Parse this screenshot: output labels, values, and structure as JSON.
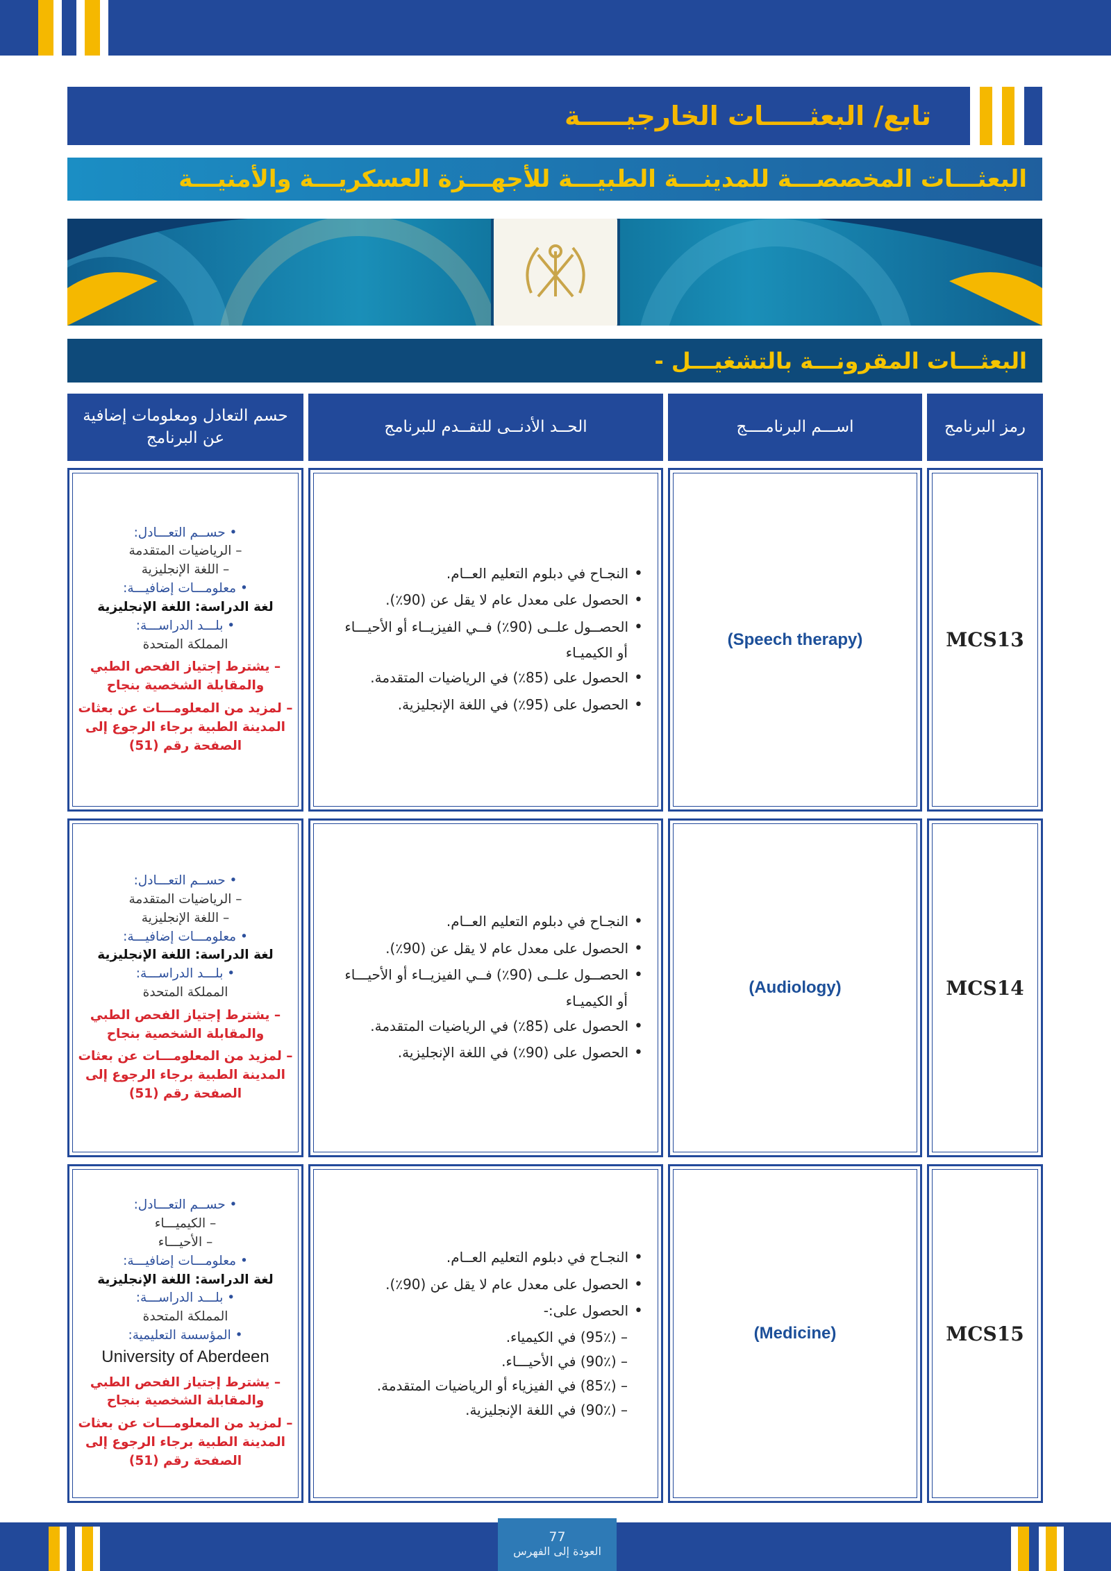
{
  "header": {
    "title": "تابع/ البعثـــــات الخارجيـــــة",
    "subtitle": "البعثـــات المخصصـــة للمدينـــة الطبيـــة للأجهـــزة العسكريـــة والأمنيـــة",
    "section": "- البعثـــات المقرونـــة بالتشغيـــل"
  },
  "colors": {
    "primary": "#22499a",
    "accent": "#f5b800",
    "dark": "#0e4a7a",
    "red": "#d7262e"
  },
  "banner": {
    "emblem": "emblem-icon"
  },
  "table": {
    "headers": [
      "رمز البرنامج",
      "اســـم البرنامــــج",
      "الحــد الأدنــى للتقــدم للبرنامج",
      "حسم التعادل ومعلومات إضافية عن البرنامج"
    ],
    "rows": [
      {
        "code": "MCS13",
        "name": "(Speech therapy)",
        "requirements": [
          {
            "t": "النجـاح في دبلوم التعليم العــام.",
            "b": true
          },
          {
            "t": "الحصول على معدل عام لا يقل عن (90٪).",
            "b": true
          },
          {
            "t": "الحصــول علــى (90٪) فــي الفيزيــاء أو الأحيـــاء",
            "b": true
          },
          {
            "t": "أو الكيميـاء",
            "b": false
          },
          {
            "t": "الحصول على (85٪) في الرياضيات المتقدمة.",
            "b": true
          },
          {
            "t": "الحصول على (95٪) في اللغة الإنجليزية.",
            "b": true
          }
        ],
        "info": {
          "tie_label": "حســم التعـــادل:",
          "tie": [
            "– الرياضيات المتقدمة",
            "– اللغة الإنجليزية"
          ],
          "extra_label": "معلومـــات إضافيـــة:",
          "language": "لغة الدراسة: اللغة الإنجليزية",
          "country_label": "بلـــد الدراســـة:",
          "country": "المملكة المتحدة",
          "institution_label": null,
          "institution": null,
          "note1": "– يشترط إجتياز الفحص الطبي والمقابلة الشخصية بنجاح",
          "note2": "– لمزيد من المعلومـــات عن بعثات المدينة الطبية برجاء الرجوع إلى الصفحة رقم (51)"
        }
      },
      {
        "code": "MCS14",
        "name": "(Audiology)",
        "requirements": [
          {
            "t": "النجـاح في دبلوم التعليم العــام.",
            "b": true
          },
          {
            "t": "الحصول على معدل عام لا يقل عن (90٪).",
            "b": true
          },
          {
            "t": "الحصــول علــى (90٪) فــي الفيزيــاء أو الأحيـــاء",
            "b": true
          },
          {
            "t": "أو الكيميـاء",
            "b": false
          },
          {
            "t": "الحصول على (85٪) في الرياضيات المتقدمة.",
            "b": true
          },
          {
            "t": "الحصول على (90٪) في اللغة الإنجليزية.",
            "b": true
          }
        ],
        "info": {
          "tie_label": "حســم التعـــادل:",
          "tie": [
            "– الرياضيات المتقدمة",
            "– اللغة الإنجليزية"
          ],
          "extra_label": "معلومـــات إضافيـــة:",
          "language": "لغة الدراسة: اللغة الإنجليزية",
          "country_label": "بلـــد الدراســـة:",
          "country": "المملكة المتحدة",
          "institution_label": null,
          "institution": null,
          "note1": "– يشترط إجتياز الفحص الطبي والمقابلة الشخصية بنجاح",
          "note2": "– لمزيد من المعلومـــات عن بعثات المدينة الطبية برجاء الرجوع إلى الصفحة رقم (51)"
        }
      },
      {
        "code": "MCS15",
        "name": "(Medicine)",
        "requirements": [
          {
            "t": "النجـاح في دبلوم التعليم العــام.",
            "b": true
          },
          {
            "t": "الحصول على معدل عام لا يقل عن (90٪).",
            "b": true
          },
          {
            "t": "الحصول على:-",
            "b": true
          },
          {
            "t": "– (95٪) في الكيمياء.",
            "b": false
          },
          {
            "t": "– (90٪) في الأحيـــاء.",
            "b": false
          },
          {
            "t": "– (85٪) في الفيزياء أو الرياضيات المتقدمة.",
            "b": false
          },
          {
            "t": "– (90٪) في اللغة الإنجليزية.",
            "b": false
          }
        ],
        "info": {
          "tie_label": "حســم التعـــادل:",
          "tie": [
            "– الكيميـــاء",
            "– الأحيـــاء"
          ],
          "extra_label": "معلومـــات إضافيـــة:",
          "language": "لغة الدراسة: اللغة الإنجليزية",
          "country_label": "بلـــد الدراســـة:",
          "country": "المملكة المتحدة",
          "institution_label": "المؤسسة التعليمية:",
          "institution": "University of Aberdeen",
          "note1": "– يشترط إجتياز الفحص الطبي والمقابلة الشخصية بنجاح",
          "note2": "– لمزيد من المعلومـــات عن بعثات المدينة الطبية برجاء الرجوع إلى الصفحة رقم (51)"
        }
      }
    ]
  },
  "footer": {
    "page_number": "77",
    "back_link": "العودة إلى الفهرس"
  }
}
